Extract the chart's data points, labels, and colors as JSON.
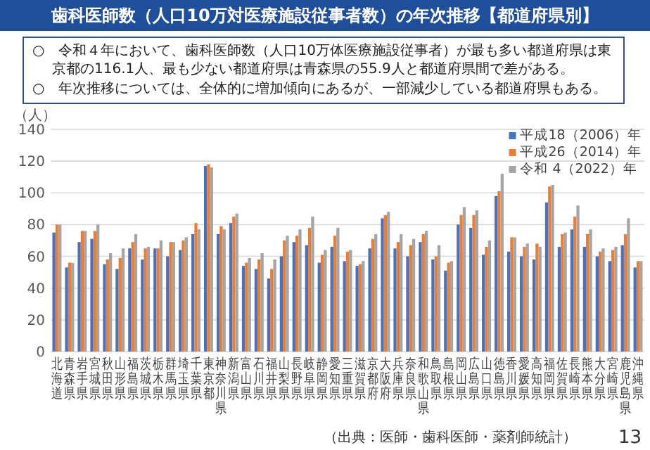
{
  "chart_data": {
    "type": "bar",
    "title": "歯科医師数（人口10万対医療施設従事者数）の年次推移【都道府県別】",
    "annotations": [
      "○　令和４年において、歯科医師数（人口10万体医療施設従事者）が最も多い都道府県は東京都の116.1人、最も少ない都道府県は青森県の55.9人と都道府県間で差がある。",
      "○　年次推移については、全体的に増加傾向にあるが、一部減少している都道府県もある。",
      "（出典：医師・歯科医師・薬剤師統計）",
      "13"
    ],
    "ylabel": "（人）",
    "categories": [
      "北海道",
      "青森県",
      "岩手県",
      "宮城県",
      "秋田県",
      "山形県",
      "福島県",
      "茨城県",
      "栃木県",
      "群馬県",
      "埼玉県",
      "千葉県",
      "東京都",
      "神奈川県",
      "新潟県",
      "富山県",
      "石川県",
      "福井県",
      "山梨県",
      "長野県",
      "岐阜県",
      "静岡県",
      "愛知県",
      "三重県",
      "滋賀県",
      "京都府",
      "大阪府",
      "兵庫県",
      "奈良県",
      "和歌山県",
      "鳥取県",
      "島根県",
      "岡山県",
      "広島県",
      "山口県",
      "徳島県",
      "香川県",
      "愛媛県",
      "高知県",
      "福岡県",
      "佐賀県",
      "長崎県",
      "熊本県",
      "大分県",
      "宮崎県",
      "鹿児島県",
      "沖縄県"
    ],
    "series": [
      {
        "name": "平成18（2006）年",
        "color": "#4472c4",
        "values": [
          75,
          53,
          69,
          71,
          55,
          52,
          65,
          58,
          65,
          60,
          64,
          74,
          117,
          74,
          81,
          54,
          52,
          46,
          60,
          69,
          67,
          56,
          66,
          57,
          54,
          65,
          84,
          65,
          60,
          69,
          58,
          51,
          80,
          78,
          61,
          98,
          63,
          60,
          58,
          94,
          66,
          77,
          66,
          60,
          57,
          67,
          53
        ]
      },
      {
        "name": "平成26（2014）年",
        "color": "#ed7d31",
        "values": [
          80,
          56,
          76,
          76,
          58,
          59,
          69,
          65,
          65,
          69,
          70,
          81,
          118,
          79,
          85,
          56,
          58,
          52,
          70,
          73,
          78,
          61,
          73,
          63,
          55,
          71,
          86,
          69,
          67,
          74,
          60,
          56,
          86,
          86,
          66,
          101,
          72,
          66,
          68,
          104,
          74,
          85,
          74,
          63,
          64,
          74,
          57
        ]
      },
      {
        "name": "令和 4（2022）年",
        "color": "#a5a5a5",
        "values": [
          80,
          55.9,
          76,
          80,
          62,
          65,
          74,
          66,
          70,
          69,
          72,
          77,
          116.1,
          77,
          87,
          59,
          62,
          58,
          73,
          77,
          85,
          64,
          78,
          64,
          57,
          74,
          88,
          74,
          71,
          76,
          67,
          57,
          91,
          89,
          70,
          112,
          72,
          68,
          66,
          105,
          75,
          92,
          77,
          65,
          66,
          84,
          57
        ]
      }
    ],
    "ylim": [
      0,
      140
    ],
    "yticks": [
      0,
      20,
      40,
      60,
      80,
      100,
      120,
      140
    ],
    "grid": "y",
    "legend": "top right"
  }
}
